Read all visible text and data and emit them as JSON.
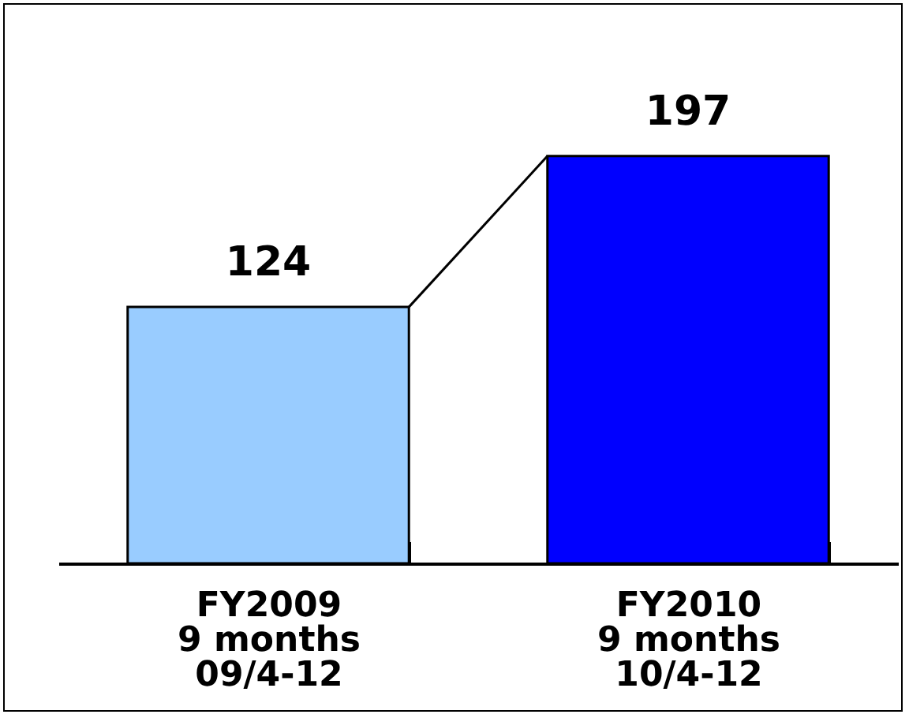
{
  "chart_data": {
    "type": "bar",
    "categories": [
      "FY2009\n9 months\n09/4-12",
      "FY2010\n9 months\n10/4-12"
    ],
    "values": [
      124,
      197
    ],
    "colors": [
      "#99ccff",
      "#0000ff"
    ],
    "data_labels": true,
    "tick_labels": "x",
    "grid": false,
    "legend": false
  }
}
